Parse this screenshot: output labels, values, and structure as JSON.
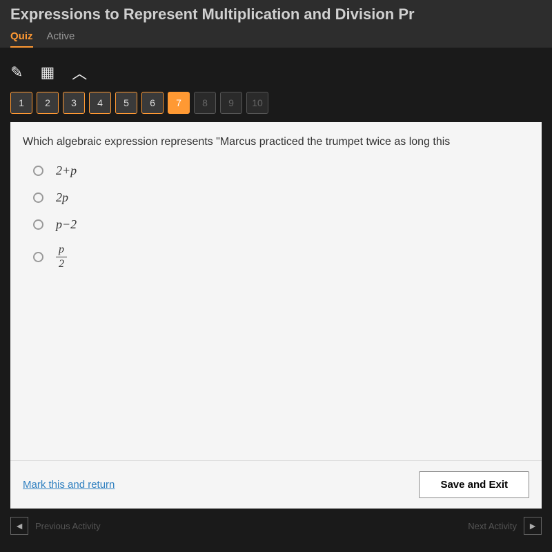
{
  "header": {
    "title": "Expressions to Represent Multiplication and Division Pr",
    "tabs": {
      "quiz": "Quiz",
      "active": "Active"
    }
  },
  "toolbar": {
    "pencil": "✎",
    "calculator": "▦",
    "collapse": "︿"
  },
  "questionNav": {
    "buttons": [
      {
        "label": "1",
        "state": "done"
      },
      {
        "label": "2",
        "state": "done"
      },
      {
        "label": "3",
        "state": "done"
      },
      {
        "label": "4",
        "state": "done"
      },
      {
        "label": "5",
        "state": "done"
      },
      {
        "label": "6",
        "state": "done"
      },
      {
        "label": "7",
        "state": "current"
      },
      {
        "label": "8",
        "state": "disabled"
      },
      {
        "label": "9",
        "state": "disabled"
      },
      {
        "label": "10",
        "state": "disabled"
      }
    ]
  },
  "question": {
    "text": "Which algebraic expression represents \"Marcus practiced the trumpet twice as long this",
    "options": {
      "a": "2+p",
      "b": "2p",
      "c": "p−2",
      "d_top": "p",
      "d_bot": "2"
    }
  },
  "bottomBar": {
    "markReturn": "Mark this and return",
    "saveExit": "Save and Exit"
  },
  "footer": {
    "prev": "◄",
    "next": "►",
    "prevText": "Previous Activity",
    "nextText": "Next Activity"
  },
  "colors": {
    "accent": "#ff9933",
    "headerBg": "#2d2d2d",
    "darkBg": "#1a1a1a",
    "contentBg": "#f5f5f5",
    "linkColor": "#3080c0"
  }
}
